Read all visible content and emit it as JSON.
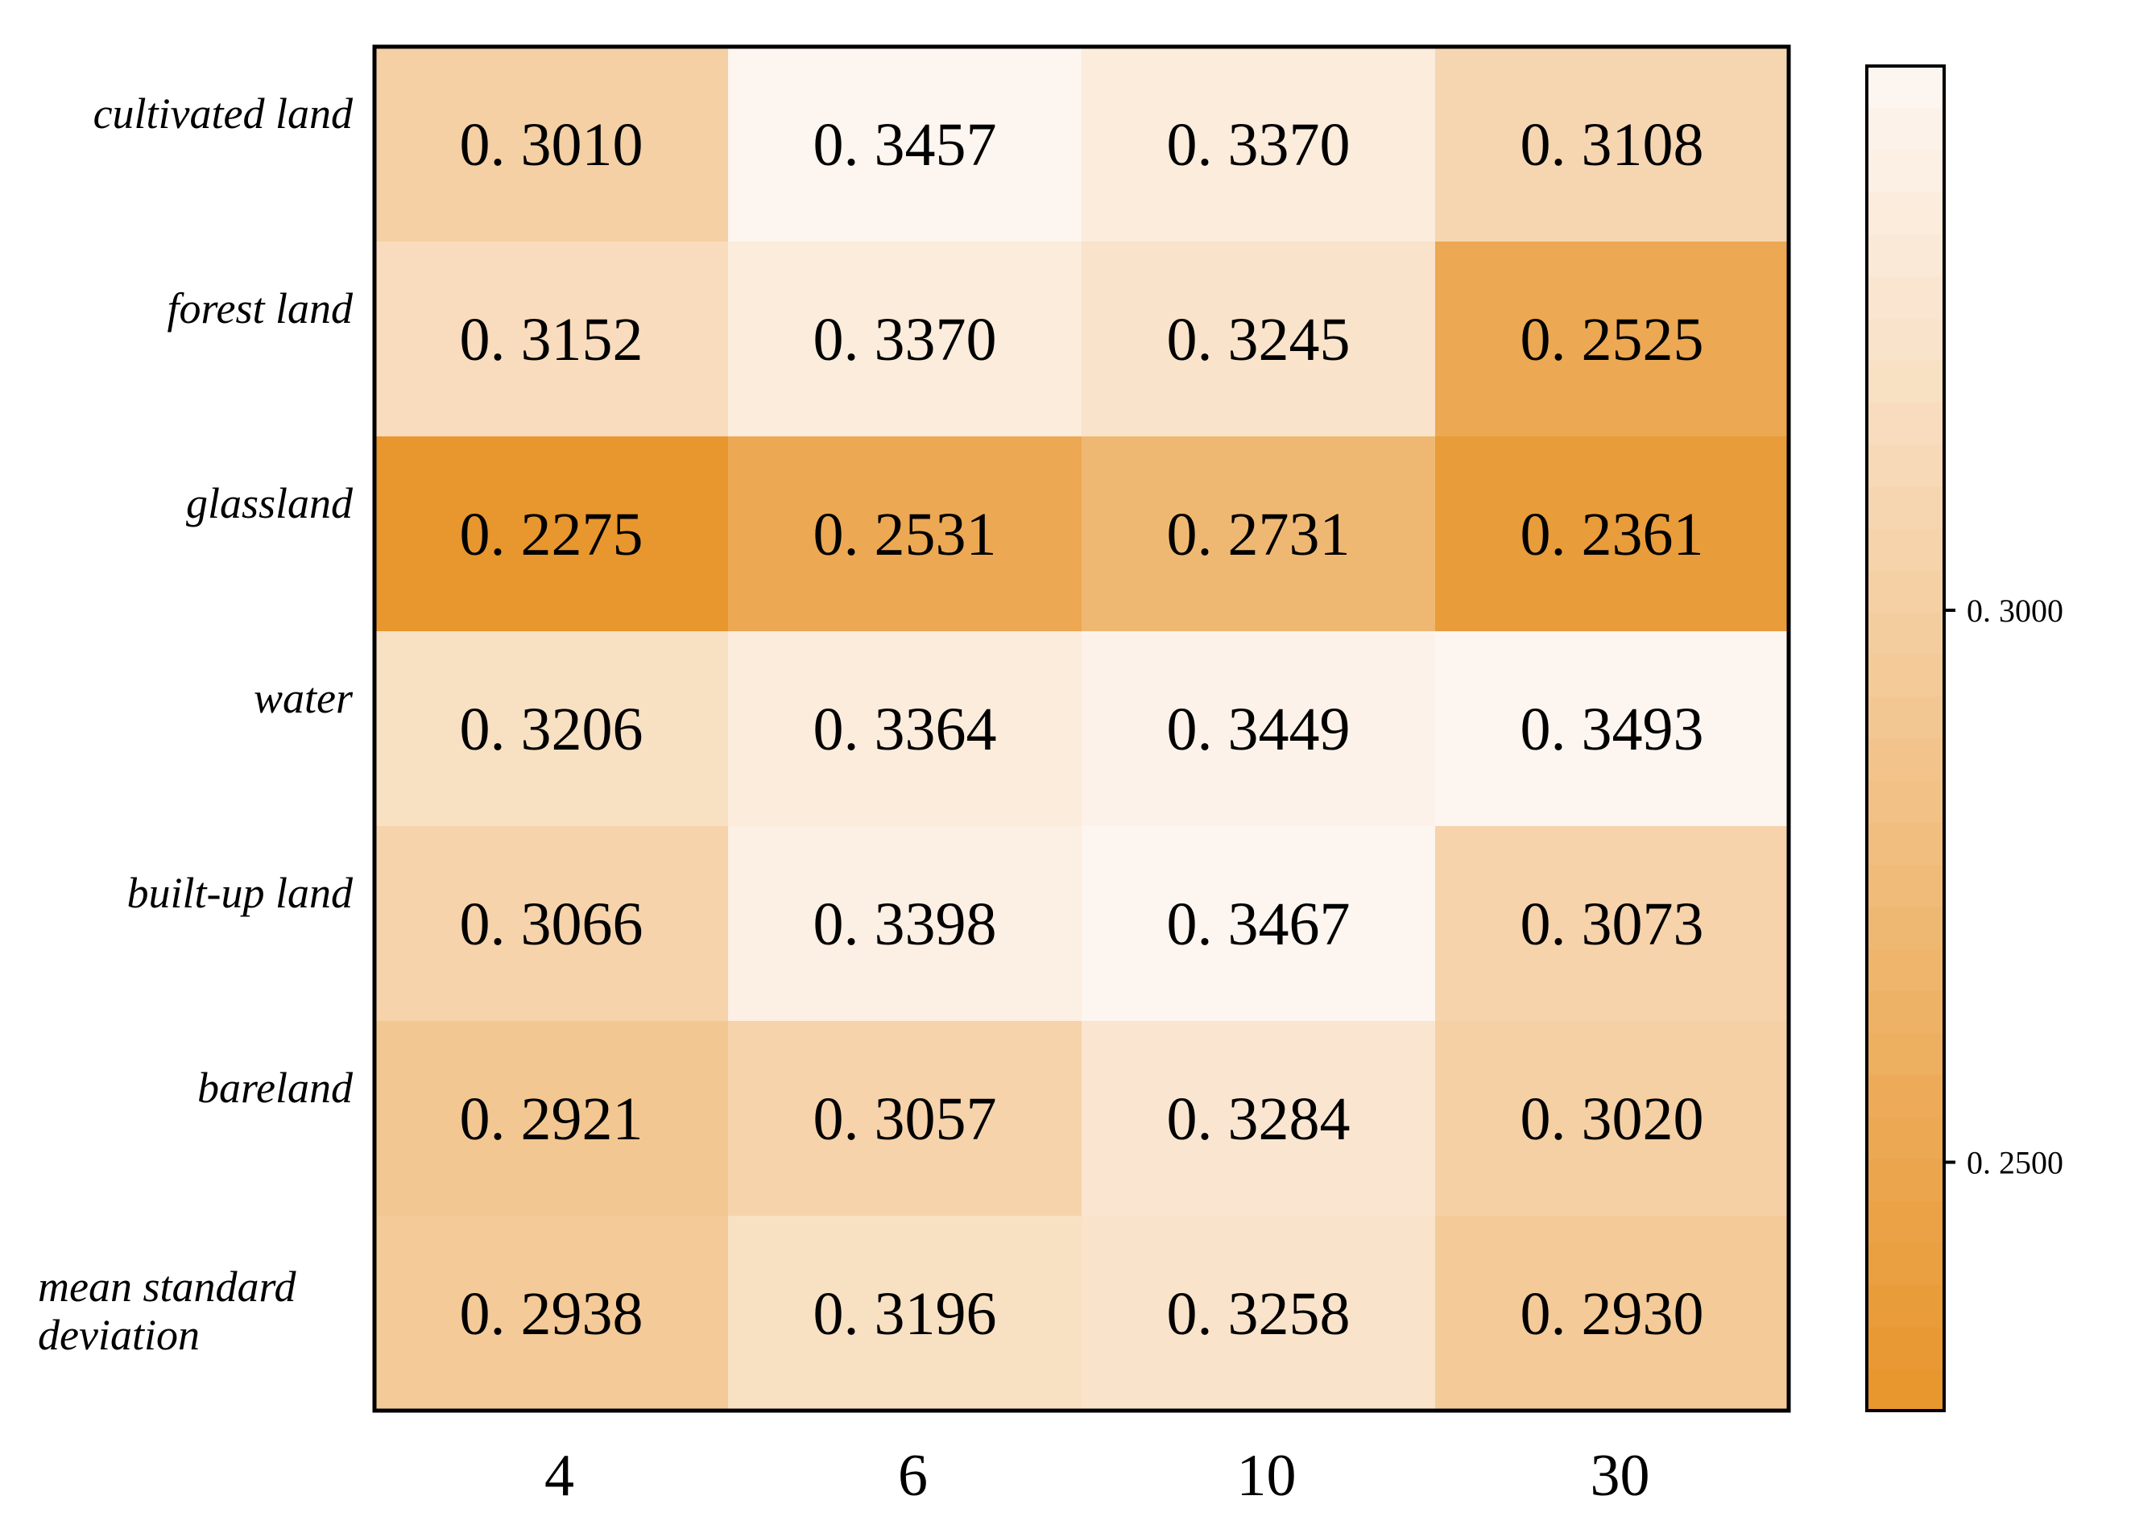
{
  "chart_data": {
    "type": "heatmap",
    "title": "",
    "xlabel": "",
    "ylabel": "",
    "x_categories": [
      "4",
      "6",
      "10",
      "30"
    ],
    "y_categories": [
      "cultivated land",
      "forest land",
      "glassland",
      "water",
      "built-up land",
      "bareland",
      "mean standard deviation"
    ],
    "values": [
      [
        0.301,
        0.3457,
        0.337,
        0.3108
      ],
      [
        0.3152,
        0.337,
        0.3245,
        0.2525
      ],
      [
        0.2275,
        0.2531,
        0.2731,
        0.2361
      ],
      [
        0.3206,
        0.3364,
        0.3449,
        0.3493
      ],
      [
        0.3066,
        0.3398,
        0.3467,
        0.3073
      ],
      [
        0.2921,
        0.3057,
        0.3284,
        0.302
      ],
      [
        0.2938,
        0.3196,
        0.3258,
        0.293
      ]
    ],
    "value_labels": [
      [
        "0. 3010",
        "0. 3457",
        "0. 3370",
        "0. 3108"
      ],
      [
        "0. 3152",
        "0. 3370",
        "0. 3245",
        "0. 2525"
      ],
      [
        "0. 2275",
        "0. 2531",
        "0. 2731",
        "0. 2361"
      ],
      [
        "0. 3206",
        "0. 3364",
        "0. 3449",
        "0. 3493"
      ],
      [
        "0. 3066",
        "0. 3398",
        "0. 3467",
        "0. 3073"
      ],
      [
        "0. 2921",
        "0. 3057",
        "0. 3284",
        "0. 3020"
      ],
      [
        "0. 2938",
        "0. 3196",
        "0. 3258",
        "0. 2930"
      ]
    ],
    "colorbar": {
      "range": [
        0.2275,
        0.3493
      ],
      "ticks": [
        0.3,
        0.25
      ],
      "tick_labels": [
        "0. 3000",
        "0. 2500"
      ],
      "color_low": "#e8962e",
      "color_high": "#fdf5ef",
      "steps": 32
    }
  }
}
